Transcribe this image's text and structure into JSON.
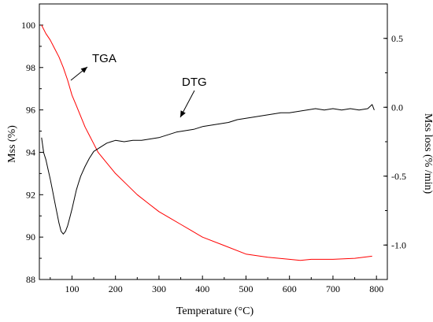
{
  "chart_data": {
    "type": "line",
    "x_axis": {
      "label": "Temperature (°C)",
      "range": [
        25,
        825
      ],
      "ticks": [
        100,
        200,
        300,
        400,
        500,
        600,
        700,
        800
      ]
    },
    "y_axis_left": {
      "label": "Mss (%)",
      "range": [
        88,
        101
      ],
      "ticks": [
        88,
        90,
        92,
        94,
        96,
        98,
        100
      ]
    },
    "y_axis_right": {
      "label": "Mss loss (% /min)",
      "range": [
        -1.25,
        0.75
      ],
      "ticks": [
        "0.5",
        "0.0",
        "-0.5",
        "-1.0"
      ],
      "tick_values": [
        0.5,
        0.0,
        -0.5,
        -1.0
      ]
    },
    "annotations": [
      {
        "text": "TGA"
      },
      {
        "text": "DTG"
      }
    ],
    "series": [
      {
        "name": "TGA",
        "axis": "left",
        "color": "#ff0000",
        "x": [
          30,
          40,
          50,
          60,
          70,
          80,
          90,
          100,
          110,
          120,
          130,
          140,
          150,
          160,
          180,
          200,
          225,
          250,
          275,
          300,
          325,
          350,
          375,
          400,
          450,
          500,
          550,
          600,
          625,
          650,
          700,
          750,
          790
        ],
        "y": [
          100.0,
          99.6,
          99.3,
          98.9,
          98.5,
          98.0,
          97.4,
          96.7,
          96.2,
          95.7,
          95.2,
          94.8,
          94.4,
          94.0,
          93.5,
          93.0,
          92.5,
          92.0,
          91.6,
          91.2,
          90.9,
          90.6,
          90.3,
          90.0,
          89.6,
          89.2,
          89.05,
          88.95,
          88.9,
          88.95,
          88.95,
          89.0,
          89.1
        ]
      },
      {
        "name": "DTG",
        "axis": "right",
        "color": "#000000",
        "x": [
          30,
          35,
          40,
          45,
          50,
          55,
          60,
          65,
          70,
          75,
          80,
          85,
          90,
          95,
          100,
          105,
          110,
          115,
          120,
          130,
          140,
          150,
          160,
          170,
          180,
          190,
          200,
          220,
          240,
          260,
          280,
          300,
          320,
          340,
          360,
          380,
          400,
          420,
          440,
          460,
          480,
          500,
          520,
          540,
          560,
          580,
          600,
          620,
          640,
          660,
          680,
          700,
          720,
          740,
          760,
          780,
          790,
          795
        ],
        "y": [
          -0.22,
          -0.33,
          -0.38,
          -0.45,
          -0.52,
          -0.6,
          -0.68,
          -0.76,
          -0.84,
          -0.9,
          -0.92,
          -0.9,
          -0.86,
          -0.8,
          -0.74,
          -0.67,
          -0.6,
          -0.55,
          -0.5,
          -0.43,
          -0.37,
          -0.32,
          -0.3,
          -0.28,
          -0.26,
          -0.25,
          -0.24,
          -0.25,
          -0.24,
          -0.24,
          -0.23,
          -0.22,
          -0.2,
          -0.18,
          -0.17,
          -0.16,
          -0.14,
          -0.13,
          -0.12,
          -0.11,
          -0.09,
          -0.08,
          -0.07,
          -0.06,
          -0.05,
          -0.04,
          -0.04,
          -0.03,
          -0.02,
          -0.01,
          -0.02,
          -0.01,
          -0.02,
          -0.01,
          -0.02,
          -0.01,
          0.02,
          -0.02
        ]
      }
    ]
  }
}
